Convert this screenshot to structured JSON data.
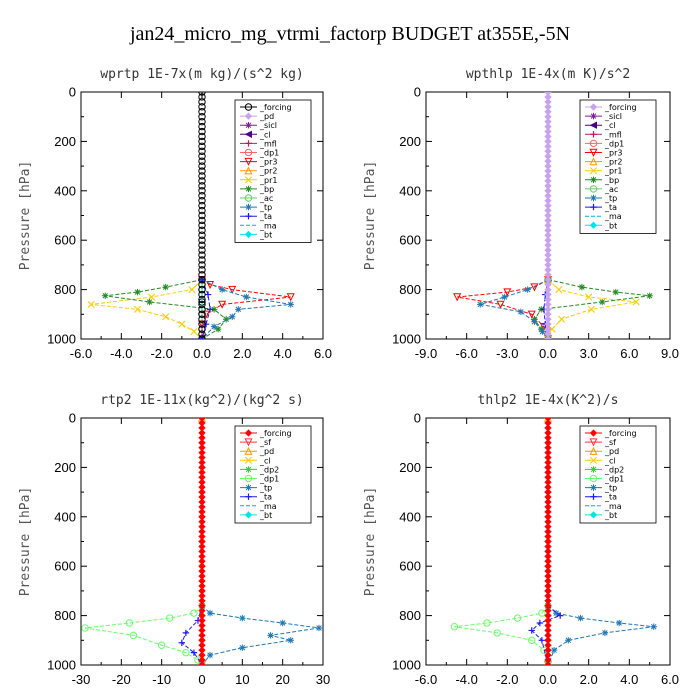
{
  "figure": {
    "title": "jan24_micro_mg_vtrmi_factorp  BUDGET at355E,-5N"
  },
  "chart_data": [
    {
      "type": "line",
      "title": "wprtp  1E-7x(m kg)/(s^2 kg)",
      "ylabel": "Pressure [hPa]",
      "xlim": [
        -6,
        6
      ],
      "ylim": [
        1000,
        0
      ],
      "xticks": [
        "-6.0",
        "-4.0",
        "-2.0",
        "0.0",
        "2.0",
        "4.0",
        "6.0"
      ],
      "xtick_values": [
        -6,
        -4,
        -2,
        0,
        2,
        4,
        6
      ],
      "yticks": [
        "0",
        "200",
        "400",
        "600",
        "800",
        "1000"
      ],
      "ytick_values": [
        0,
        200,
        400,
        600,
        800,
        1000
      ],
      "legend_position": "top-right",
      "series": [
        {
          "name": "_forcing",
          "color": "#000000",
          "marker": "circle-open",
          "pressure": [
            760,
            800,
            850,
            900,
            960,
            1000
          ],
          "values": [
            0,
            0,
            0,
            0,
            0,
            0
          ]
        },
        {
          "name": "_pd",
          "color": "#c8a2f0",
          "marker": "diamond",
          "pressure": [
            760,
            1000
          ],
          "values": [
            0,
            0
          ]
        },
        {
          "name": "_sicl",
          "color": "#7b1fa2",
          "marker": "star",
          "pressure": [
            760,
            1000
          ],
          "values": [
            0,
            0
          ]
        },
        {
          "name": "_cl",
          "color": "#4b0082",
          "marker": "triangle-left",
          "pressure": [
            760,
            1000
          ],
          "values": [
            0,
            0
          ]
        },
        {
          "name": "_mfl",
          "color": "#c2185b",
          "marker": "plus",
          "pressure": [
            760,
            1000
          ],
          "values": [
            0,
            0
          ]
        },
        {
          "name": "_dp1",
          "color": "#ff6666",
          "marker": "circle-open",
          "pressure": [
            760,
            1000
          ],
          "values": [
            0,
            0
          ]
        },
        {
          "name": "_pr3",
          "color": "#ff0000",
          "marker": "triangle-down",
          "pressure": [
            760,
            780,
            800,
            830,
            860,
            900,
            940,
            1000
          ],
          "values": [
            0,
            0.4,
            1.5,
            4.4,
            1.0,
            0.2,
            0,
            0
          ]
        },
        {
          "name": "_pr2",
          "color": "#ff9900",
          "marker": "triangle-up",
          "pressure": [
            760,
            1000
          ],
          "values": [
            0,
            0
          ]
        },
        {
          "name": "_pr1",
          "color": "#ffcc00",
          "marker": "cross",
          "pressure": [
            760,
            800,
            830,
            860,
            880,
            910,
            940,
            970,
            1000
          ],
          "values": [
            0,
            -0.5,
            -2.5,
            -5.5,
            -3.2,
            -1.8,
            -1.0,
            -0.4,
            0
          ]
        },
        {
          "name": "_bp",
          "color": "#228b22",
          "marker": "star",
          "pressure": [
            760,
            790,
            810,
            825,
            850,
            880,
            920,
            960,
            1000
          ],
          "values": [
            0,
            -1.8,
            -3.2,
            -4.8,
            -2.6,
            0.6,
            1.2,
            0.8,
            0
          ]
        },
        {
          "name": "_ac",
          "color": "#66cc66",
          "marker": "circle-open",
          "pressure": [
            760,
            1000
          ],
          "values": [
            0,
            0
          ]
        },
        {
          "name": "_tp",
          "color": "#1f77b4",
          "marker": "star",
          "pressure": [
            760,
            800,
            830,
            860,
            880,
            910,
            950,
            1000
          ],
          "values": [
            0,
            1.0,
            2.2,
            4.4,
            1.8,
            1.5,
            0.6,
            0
          ]
        },
        {
          "name": "_ta",
          "color": "#1a1aff",
          "marker": "plus",
          "pressure": [
            760,
            820,
            880,
            940,
            1000
          ],
          "values": [
            0,
            0.3,
            0.4,
            0.2,
            0
          ]
        },
        {
          "name": "_ma",
          "color": "#00aaff",
          "marker": "none",
          "pressure": [
            760,
            1000
          ],
          "values": [
            0,
            0
          ]
        },
        {
          "name": "_bt",
          "color": "#00e5e5",
          "marker": "diamond",
          "pressure": [
            760,
            1000
          ],
          "values": [
            0,
            0
          ]
        }
      ]
    },
    {
      "type": "line",
      "title": "wpthlp  1E-4x(m K)/s^2",
      "ylabel": "Pressure [hPa]",
      "xlim": [
        -9,
        9
      ],
      "ylim": [
        1000,
        0
      ],
      "xticks": [
        "-9.0",
        "-6.0",
        "-3.0",
        "0.0",
        "3.0",
        "6.0",
        "9.0"
      ],
      "xtick_values": [
        -9,
        -6,
        -3,
        0,
        3,
        6,
        9
      ],
      "yticks": [
        "0",
        "200",
        "400",
        "600",
        "800",
        "1000"
      ],
      "ytick_values": [
        0,
        200,
        400,
        600,
        800,
        1000
      ],
      "legend_position": "top-right",
      "series": [
        {
          "name": "_forcing",
          "color": "#c8a2f0",
          "marker": "diamond",
          "pressure": [
            760,
            1000
          ],
          "values": [
            0,
            0
          ]
        },
        {
          "name": "_sicl",
          "color": "#7b1fa2",
          "marker": "star",
          "pressure": [
            760,
            1000
          ],
          "values": [
            0,
            0
          ]
        },
        {
          "name": "_cl",
          "color": "#4b0082",
          "marker": "triangle-left",
          "pressure": [
            760,
            1000
          ],
          "values": [
            0,
            0
          ]
        },
        {
          "name": "_mfl",
          "color": "#c2185b",
          "marker": "plus",
          "pressure": [
            760,
            1000
          ],
          "values": [
            0,
            0
          ]
        },
        {
          "name": "_dp1",
          "color": "#ff6666",
          "marker": "circle-open",
          "pressure": [
            760,
            1000
          ],
          "values": [
            0,
            0
          ]
        },
        {
          "name": "_pr3",
          "color": "#ff0000",
          "marker": "triangle-down",
          "pressure": [
            760,
            790,
            810,
            830,
            860,
            900,
            950,
            1000
          ],
          "values": [
            0,
            -1.0,
            -3.0,
            -6.7,
            -3.5,
            -1.2,
            -0.3,
            0
          ]
        },
        {
          "name": "_pr2",
          "color": "#ff9900",
          "marker": "triangle-up",
          "pressure": [
            760,
            1000
          ],
          "values": [
            0,
            0
          ]
        },
        {
          "name": "_pr1",
          "color": "#ffcc00",
          "marker": "cross",
          "pressure": [
            760,
            800,
            830,
            850,
            880,
            920,
            960,
            1000
          ],
          "values": [
            0,
            0.8,
            3.0,
            6.5,
            3.2,
            1.0,
            0.3,
            0
          ]
        },
        {
          "name": "_bp",
          "color": "#228b22",
          "marker": "star",
          "pressure": [
            760,
            790,
            810,
            825,
            850,
            880,
            920,
            960,
            1000
          ],
          "values": [
            0,
            2.5,
            5.0,
            7.5,
            4.0,
            -0.5,
            -1.0,
            -0.5,
            0
          ]
        },
        {
          "name": "_ac",
          "color": "#66cc66",
          "marker": "circle-open",
          "pressure": [
            760,
            1000
          ],
          "values": [
            0,
            0
          ]
        },
        {
          "name": "_tp",
          "color": "#1f77b4",
          "marker": "star",
          "pressure": [
            760,
            800,
            830,
            860,
            890,
            930,
            970,
            1000
          ],
          "values": [
            0,
            -1.5,
            -3.2,
            -5.0,
            -2.0,
            -1.0,
            -0.4,
            0
          ]
        },
        {
          "name": "_ta",
          "color": "#1a1aff",
          "marker": "plus",
          "pressure": [
            760,
            820,
            880,
            940,
            1000
          ],
          "values": [
            0,
            -0.2,
            -0.3,
            -0.2,
            0
          ]
        },
        {
          "name": "_ma",
          "color": "#00aaff",
          "marker": "none",
          "pressure": [
            760,
            1000
          ],
          "values": [
            0,
            0
          ]
        },
        {
          "name": "_bt",
          "color": "#00e5e5",
          "marker": "diamond",
          "pressure": [
            760,
            1000
          ],
          "values": [
            0,
            0
          ]
        }
      ]
    },
    {
      "type": "line",
      "title": "rtp2  1E-11x(kg^2)/(kg^2 s)",
      "ylabel": "Pressure [hPa]",
      "xlim": [
        -30,
        30
      ],
      "ylim": [
        1000,
        0
      ],
      "xticks": [
        "-30",
        "-20",
        "-10",
        "0",
        "10",
        "20",
        "30"
      ],
      "xtick_values": [
        -30,
        -20,
        -10,
        0,
        10,
        20,
        30
      ],
      "yticks": [
        "0",
        "200",
        "400",
        "600",
        "800",
        "1000"
      ],
      "ytick_values": [
        0,
        200,
        400,
        600,
        800,
        1000
      ],
      "legend_position": "top-right",
      "series": [
        {
          "name": "_forcing",
          "color": "#ff0000",
          "marker": "diamond",
          "pressure": [
            0,
            100,
            200,
            300,
            400,
            500,
            600,
            700,
            800,
            900,
            1000
          ],
          "values": [
            0,
            0,
            0,
            0,
            0,
            0,
            0,
            0,
            0,
            0,
            0
          ]
        },
        {
          "name": "_sf",
          "color": "#ff3333",
          "marker": "triangle-down",
          "pressure": [
            0,
            1000
          ],
          "values": [
            0,
            0
          ]
        },
        {
          "name": "_pd",
          "color": "#ff9900",
          "marker": "triangle-up",
          "pressure": [
            0,
            1000
          ],
          "values": [
            0,
            0
          ]
        },
        {
          "name": "_cl",
          "color": "#ffcc00",
          "marker": "cross",
          "pressure": [
            0,
            1000
          ],
          "values": [
            0,
            0
          ]
        },
        {
          "name": "_dp2",
          "color": "#33cc33",
          "marker": "star",
          "pressure": [
            760,
            1000
          ],
          "values": [
            0,
            0
          ]
        },
        {
          "name": "_dp1",
          "color": "#66ff66",
          "marker": "circle-open",
          "pressure": [
            760,
            790,
            810,
            830,
            850,
            880,
            920,
            950,
            980,
            1000
          ],
          "values": [
            0,
            -2,
            -8,
            -18,
            -29,
            -17,
            -10,
            -4,
            -1,
            0
          ]
        },
        {
          "name": "_tp",
          "color": "#1f77b4",
          "marker": "star",
          "pressure": [
            760,
            790,
            810,
            830,
            850,
            880,
            900,
            930,
            960,
            1000
          ],
          "values": [
            0,
            2,
            10,
            20,
            29,
            17,
            22,
            10,
            2,
            0
          ]
        },
        {
          "name": "_ta",
          "color": "#1a1aff",
          "marker": "plus",
          "pressure": [
            760,
            820,
            870,
            910,
            950,
            1000
          ],
          "values": [
            0,
            -1,
            -4,
            -5,
            -2,
            0
          ]
        },
        {
          "name": "_ma",
          "color": "#00aaff",
          "marker": "none",
          "pressure": [
            0,
            1000
          ],
          "values": [
            0,
            0
          ]
        },
        {
          "name": "_bt",
          "color": "#00e5e5",
          "marker": "diamond",
          "pressure": [
            0,
            1000
          ],
          "values": [
            0,
            0
          ]
        }
      ]
    },
    {
      "type": "line",
      "title": "thlp2  1E-4x(K^2)/s",
      "ylabel": "Pressure [hPa]",
      "xlim": [
        -6,
        6
      ],
      "ylim": [
        1000,
        0
      ],
      "xticks": [
        "-6.0",
        "-4.0",
        "-2.0",
        "0.0",
        "2.0",
        "4.0",
        "6.0"
      ],
      "xtick_values": [
        -6,
        -4,
        -2,
        0,
        2,
        4,
        6
      ],
      "yticks": [
        "0",
        "200",
        "400",
        "600",
        "800",
        "1000"
      ],
      "ytick_values": [
        0,
        200,
        400,
        600,
        800,
        1000
      ],
      "legend_position": "top-right",
      "series": [
        {
          "name": "_forcing",
          "color": "#ff0000",
          "marker": "diamond",
          "pressure": [
            0,
            100,
            200,
            300,
            400,
            500,
            600,
            700,
            800,
            900,
            1000
          ],
          "values": [
            0,
            0,
            0,
            0,
            0,
            0,
            0,
            0,
            0,
            0,
            0
          ]
        },
        {
          "name": "_sf",
          "color": "#ff3333",
          "marker": "triangle-down",
          "pressure": [
            0,
            1000
          ],
          "values": [
            0,
            0
          ]
        },
        {
          "name": "_pd",
          "color": "#ff9900",
          "marker": "triangle-up",
          "pressure": [
            0,
            1000
          ],
          "values": [
            0,
            0
          ]
        },
        {
          "name": "_cl",
          "color": "#ffcc00",
          "marker": "cross",
          "pressure": [
            0,
            1000
          ],
          "values": [
            0,
            0
          ]
        },
        {
          "name": "_dp2",
          "color": "#33cc33",
          "marker": "star",
          "pressure": [
            760,
            1000
          ],
          "values": [
            0,
            0
          ]
        },
        {
          "name": "_dp1",
          "color": "#66ff66",
          "marker": "circle-open",
          "pressure": [
            760,
            790,
            810,
            830,
            845,
            870,
            900,
            940,
            1000
          ],
          "values": [
            0,
            -0.3,
            -1.5,
            -3.0,
            -4.6,
            -2.5,
            -0.8,
            -0.2,
            0
          ]
        },
        {
          "name": "_tp",
          "color": "#1f77b4",
          "marker": "star",
          "pressure": [
            760,
            790,
            810,
            830,
            845,
            870,
            900,
            940,
            1000
          ],
          "values": [
            0,
            0.4,
            1.6,
            3.5,
            5.2,
            2.8,
            1.0,
            0.3,
            0
          ]
        },
        {
          "name": "_ta",
          "color": "#1a1aff",
          "marker": "plus",
          "pressure": [
            760,
            800,
            830,
            860,
            900,
            1000
          ],
          "values": [
            0,
            0.6,
            -0.4,
            -0.8,
            -0.3,
            0
          ]
        },
        {
          "name": "_ma",
          "color": "#00aaff",
          "marker": "none",
          "pressure": [
            0,
            1000
          ],
          "values": [
            0,
            0
          ]
        },
        {
          "name": "_bt",
          "color": "#00e5e5",
          "marker": "diamond",
          "pressure": [
            0,
            1000
          ],
          "values": [
            0,
            0
          ]
        }
      ]
    }
  ]
}
